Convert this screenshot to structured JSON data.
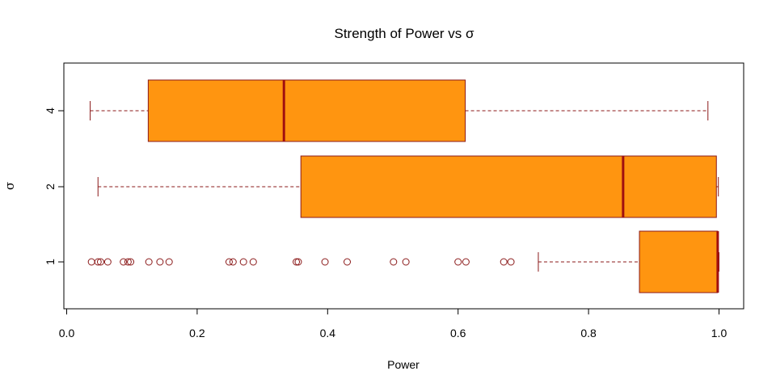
{
  "chart_data": {
    "type": "boxplot",
    "orientation": "horizontal",
    "title": "Strength of Power vs  σ",
    "xlabel": "Power",
    "ylabel": "σ",
    "xlim": [
      0.0,
      1.0
    ],
    "x_ticks": [
      0.0,
      0.2,
      0.4,
      0.6,
      0.8,
      1.0
    ],
    "x_tick_labels": [
      "0.0",
      "0.2",
      "0.4",
      "0.6",
      "0.8",
      "1.0"
    ],
    "grid": false,
    "legend": "none",
    "colors": {
      "box_fill": "#ff9510",
      "border": "#8b1a1a",
      "median": "#a01010",
      "axis": "#000000"
    },
    "groups": [
      {
        "label": "1",
        "whisker_low": 0.723,
        "q1": 0.878,
        "median": 0.998,
        "q3": 0.998,
        "whisker_high": 1.0,
        "outliers": [
          0.038,
          0.048,
          0.052,
          0.063,
          0.087,
          0.094,
          0.098,
          0.126,
          0.143,
          0.157,
          0.249,
          0.255,
          0.271,
          0.286,
          0.352,
          0.355,
          0.396,
          0.43,
          0.501,
          0.52,
          0.6,
          0.612,
          0.67,
          0.681
        ]
      },
      {
        "label": "2",
        "whisker_low": 0.048,
        "q1": 0.359,
        "median": 0.853,
        "q3": 0.996,
        "whisker_high": 0.999,
        "outliers": []
      },
      {
        "label": "4",
        "whisker_low": 0.036,
        "q1": 0.125,
        "median": 0.333,
        "q3": 0.611,
        "whisker_high": 0.983,
        "outliers": []
      }
    ]
  }
}
